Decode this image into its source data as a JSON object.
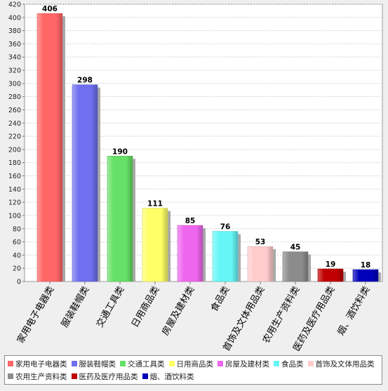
{
  "chart_data": {
    "type": "bar",
    "title": "",
    "xlabel": "",
    "ylabel": "",
    "ylim": [
      0,
      420
    ],
    "yticks": [
      0,
      20,
      40,
      60,
      80,
      100,
      120,
      140,
      160,
      180,
      200,
      220,
      240,
      260,
      280,
      300,
      320,
      340,
      360,
      380,
      400,
      420
    ],
    "grid": true,
    "legend": "bottom",
    "categories": [
      "家用电子电器类",
      "服装鞋帽类",
      "交通工具类",
      "日用商品类",
      "房屋及建材类",
      "食品类",
      "首饰及文体用品类",
      "农用生产资料类",
      "医药及医疗用品类",
      "烟、酒饮料类"
    ],
    "values": [
      406,
      298,
      190,
      111,
      85,
      76,
      53,
      45,
      19,
      18
    ],
    "colors": [
      "#ff6666",
      "#6f6fef",
      "#66e066",
      "#ffff66",
      "#ee66ee",
      "#66f6f6",
      "#ffcccc",
      "#8c8c8c",
      "#c00000",
      "#0000bb"
    ]
  }
}
